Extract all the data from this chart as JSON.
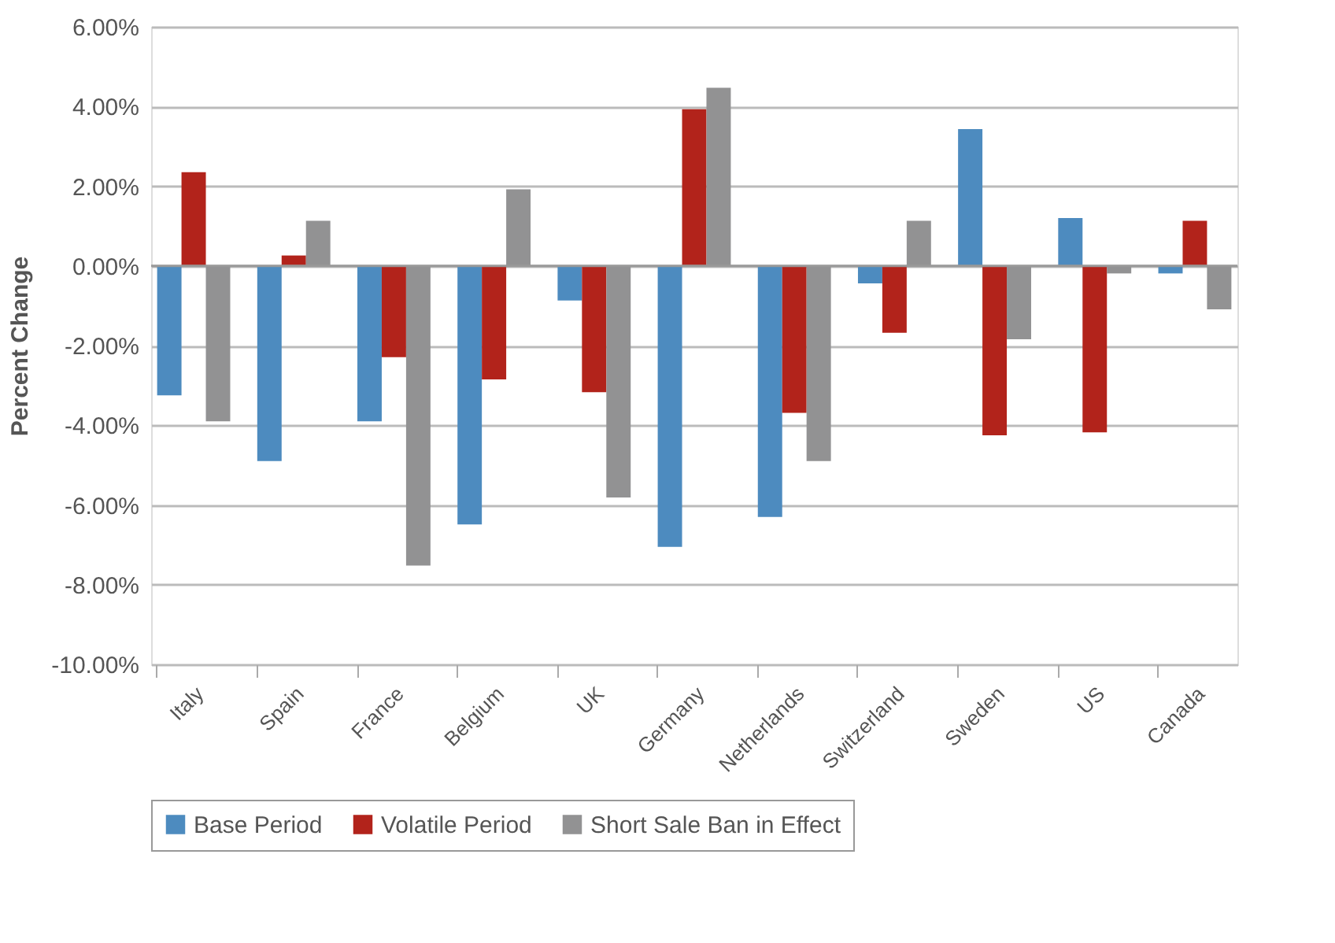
{
  "chart_data": {
    "type": "bar",
    "ylabel": "Percent Change",
    "categories": [
      "Italy",
      "Spain",
      "France",
      "Belgium",
      "UK",
      "Germany",
      "Netherlands",
      "Switzerland",
      "Sweden",
      "US",
      "Canada"
    ],
    "series": [
      {
        "name": "Base Period",
        "color": "#4d8bbf",
        "values": [
          -3.25,
          -4.9,
          -3.9,
          -6.49,
          -0.87,
          -7.05,
          -6.3,
          -0.44,
          3.43,
          1.2,
          -0.19
        ]
      },
      {
        "name": "Volatile Period",
        "color": "#b2231b",
        "values": [
          2.35,
          0.26,
          -2.29,
          -2.85,
          -3.17,
          3.93,
          -3.69,
          -1.68,
          -4.25,
          -4.18,
          1.13
        ]
      },
      {
        "name": "Short Sale Ban in Effect",
        "color": "#929293",
        "values": [
          -3.9,
          1.13,
          -7.52,
          1.92,
          -5.81,
          4.47,
          -4.9,
          1.13,
          -1.84,
          -0.19,
          -1.09
        ]
      }
    ],
    "ylim": [
      -10,
      6
    ],
    "yticks": [
      {
        "value": -10,
        "label": "-10.00%"
      },
      {
        "value": -8,
        "label": "-8.00%"
      },
      {
        "value": -6,
        "label": "-6.00%"
      },
      {
        "value": -4,
        "label": "-4.00%"
      },
      {
        "value": -2,
        "label": "-2.00%"
      },
      {
        "value": 0,
        "label": "0.00%"
      },
      {
        "value": 2,
        "label": "2.00%"
      },
      {
        "value": 4,
        "label": "4.00%"
      },
      {
        "value": 6,
        "label": "6.00%"
      }
    ],
    "grid": "y",
    "legend": "bottom"
  }
}
